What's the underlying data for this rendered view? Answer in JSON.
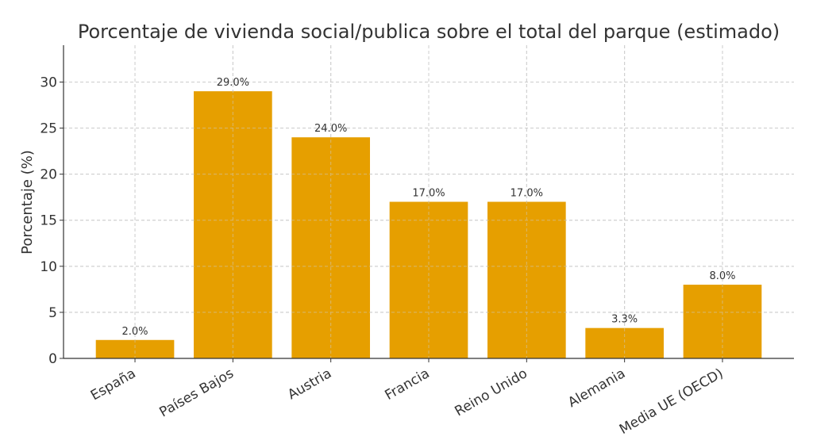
{
  "chart_data": {
    "type": "bar",
    "title": "Porcentaje de vivienda social/publica sobre el total del parque (estimado)",
    "xlabel": "",
    "ylabel": "Porcentaje (%)",
    "categories": [
      "España",
      "Países Bajos",
      "Austria",
      "Francia",
      "Reino Unido",
      "Alemania",
      "Media UE (OECD)"
    ],
    "values": [
      2.0,
      29.0,
      24.0,
      17.0,
      17.0,
      3.3,
      8.0
    ],
    "data_labels": [
      "2.0%",
      "29.0%",
      "24.0%",
      "17.0%",
      "17.0%",
      "3.3%",
      "8.0%"
    ],
    "ylim": [
      0,
      34
    ],
    "yticks": [
      0,
      5,
      10,
      15,
      20,
      25,
      30
    ],
    "grid": true,
    "bar_color": "#E69F00"
  }
}
